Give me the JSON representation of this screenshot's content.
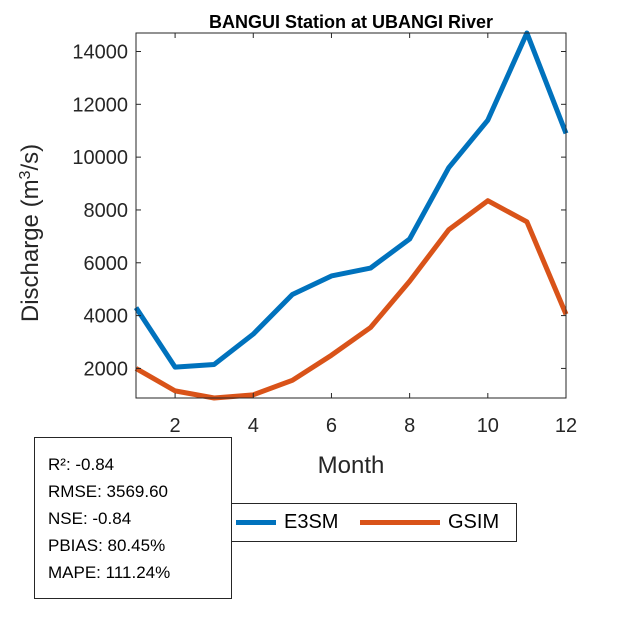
{
  "chart_data": {
    "type": "line",
    "title": "BANGUI  Station at  UBANGI  River",
    "xlabel": "Month",
    "ylabel_base": "Discharge (m",
    "ylabel_sup": "3",
    "ylabel_tail": "/s)",
    "x": [
      1,
      2,
      3,
      4,
      5,
      6,
      7,
      8,
      9,
      10,
      11,
      12
    ],
    "xlim": [
      1,
      12
    ],
    "ylim": [
      880,
      14700
    ],
    "xticks": [
      2,
      4,
      6,
      8,
      10,
      12
    ],
    "yticks": [
      2000,
      4000,
      6000,
      8000,
      10000,
      12000,
      14000
    ],
    "series": [
      {
        "name": "E3SM",
        "color": "#0072BD",
        "values": [
          4300,
          2050,
          2150,
          3300,
          4800,
          5500,
          5800,
          6900,
          9600,
          11400,
          14700,
          10900
        ]
      },
      {
        "name": "GSIM",
        "color": "#D95319",
        "values": [
          2000,
          1150,
          880,
          1000,
          1550,
          2500,
          3550,
          5300,
          7250,
          8350,
          7550,
          4050
        ]
      }
    ]
  },
  "stats": {
    "lines": [
      "R²: -0.84",
      "RMSE: 3569.60",
      "NSE: -0.84",
      "PBIAS: 80.45%",
      "MAPE: 111.24%"
    ]
  },
  "legend": {
    "items": [
      {
        "label": "E3SM",
        "color": "#0072BD"
      },
      {
        "label": "GSIM",
        "color": "#D95319"
      }
    ]
  }
}
